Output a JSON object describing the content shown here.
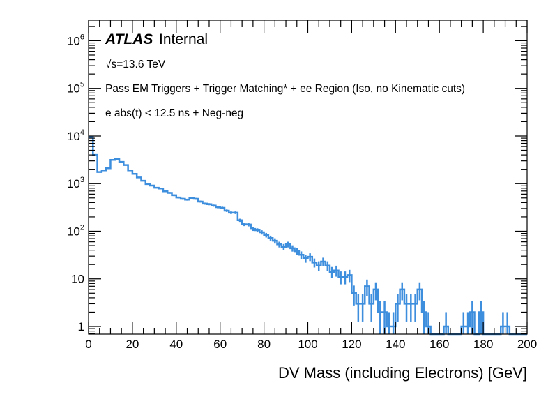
{
  "chart_data": {
    "type": "histogram",
    "title": "",
    "xlabel": "DV Mass (including Electrons) [GeV]",
    "ylabel": "",
    "xlim": [
      0,
      200
    ],
    "ylim": [
      0.69,
      2700000
    ],
    "yscale": "log",
    "bin_width": 2,
    "x_ticks": [
      0,
      20,
      40,
      60,
      80,
      100,
      120,
      140,
      160,
      180,
      200
    ],
    "x_tick_labels": [
      "0",
      "20",
      "40",
      "60",
      "80",
      "100",
      "120",
      "140",
      "160",
      "180",
      "200"
    ],
    "y_ticks": [
      {
        "value": 1,
        "base": "1",
        "exp": ""
      },
      {
        "value": 10,
        "base": "10",
        "exp": ""
      },
      {
        "value": 100,
        "base": "10",
        "exp": "2"
      },
      {
        "value": 1000,
        "base": "10",
        "exp": "3"
      },
      {
        "value": 10000,
        "base": "10",
        "exp": "4"
      },
      {
        "value": 100000,
        "base": "10",
        "exp": "5"
      },
      {
        "value": 1000000,
        "base": "10",
        "exp": "6"
      }
    ],
    "series": [
      {
        "name": "DV mass",
        "color": "#3e8ede",
        "style": "step with error bars",
        "bin_edges_start": 0,
        "values": [
          9500,
          4000,
          1750,
          1900,
          2100,
          3150,
          3300,
          2850,
          2450,
          1900,
          1600,
          1350,
          1150,
          980,
          910,
          820,
          790,
          690,
          640,
          570,
          510,
          480,
          460,
          500,
          480,
          420,
          380,
          370,
          345,
          320,
          310,
          270,
          245,
          245,
          170,
          140,
          138,
          112,
          105,
          95,
          83,
          72,
          63,
          53,
          47,
          53,
          44,
          38,
          32,
          27,
          29,
          22,
          19,
          23,
          19,
          14,
          15,
          11,
          11,
          12,
          5,
          3,
          3,
          7,
          3,
          6,
          2,
          2,
          1,
          1,
          3,
          6,
          3,
          3,
          3,
          6,
          2,
          1,
          0,
          0,
          0,
          1,
          0,
          0,
          0,
          1,
          1,
          2,
          0,
          2,
          0,
          0,
          0,
          0,
          1,
          1,
          0,
          0,
          0,
          0
        ]
      }
    ],
    "annotations": {
      "experiment": "ATLAS",
      "status": "Internal",
      "energy": "√s=13.6 TeV",
      "selection": "Pass EM Triggers + Trigger Matching* + ee Region (Iso, no Kinematic cuts)",
      "cut": "e abs(t) < 12.5 ns + Neg-neg"
    },
    "grid": false,
    "legend": "none"
  }
}
